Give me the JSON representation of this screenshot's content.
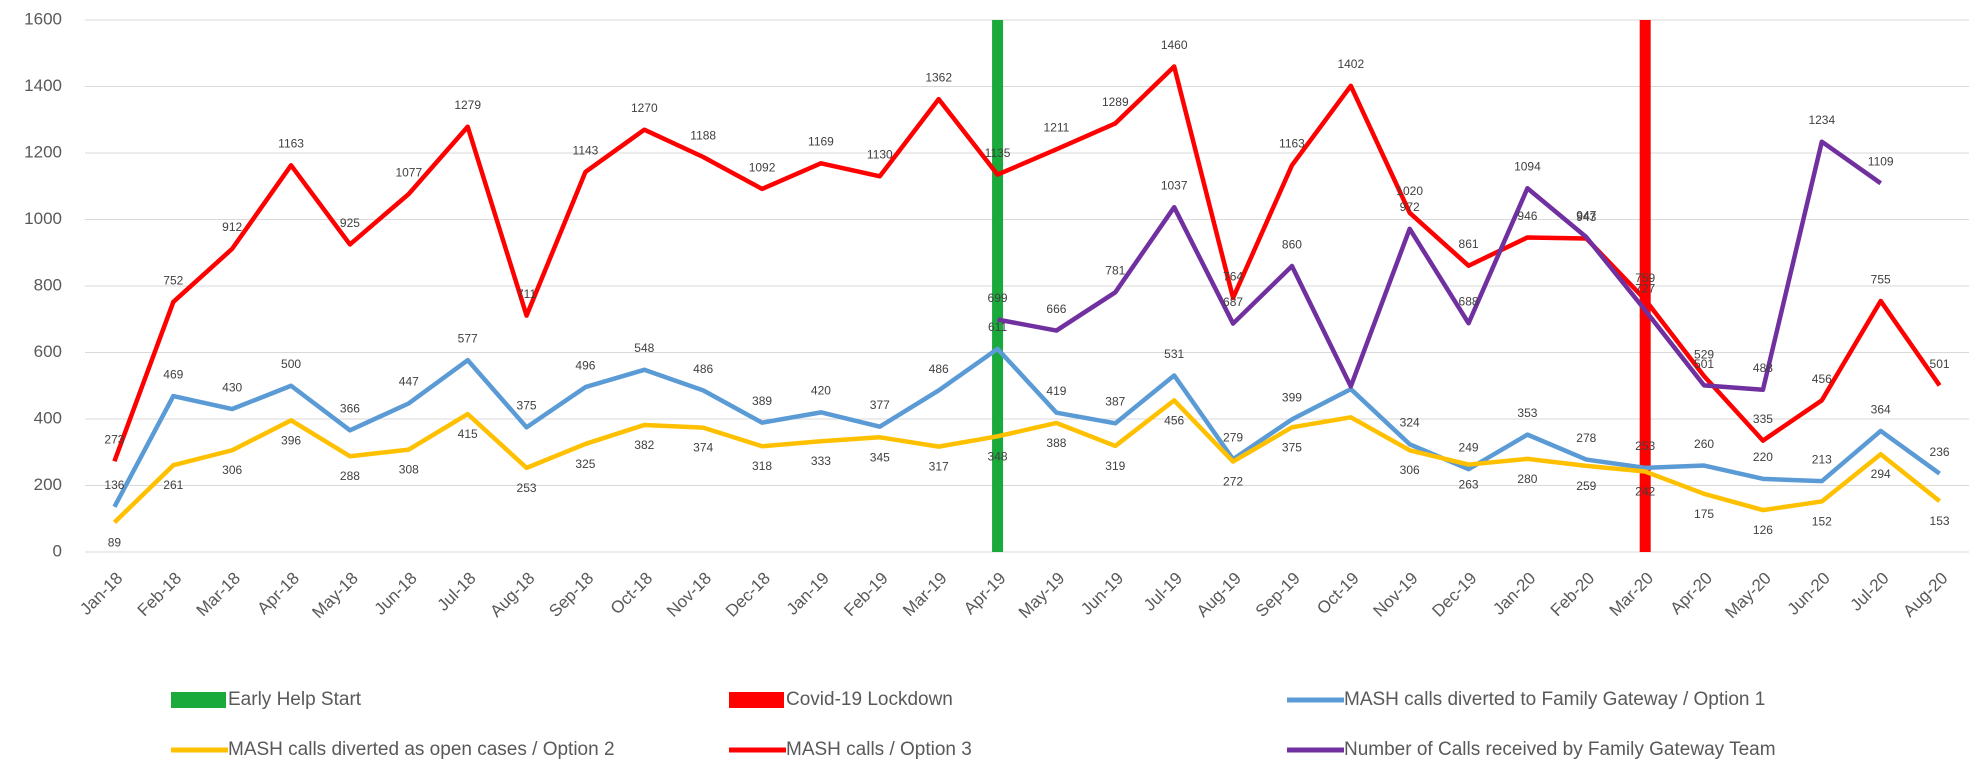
{
  "chart_data": {
    "type": "line",
    "categories": [
      "Jan-18",
      "Feb-18",
      "Mar-18",
      "Apr-18",
      "May-18",
      "Jun-18",
      "Jul-18",
      "Aug-18",
      "Sep-18",
      "Oct-18",
      "Nov-18",
      "Dec-18",
      "Jan-19",
      "Feb-19",
      "Mar-19",
      "Apr-19",
      "May-19",
      "Jun-19",
      "Jul-19",
      "Aug-19",
      "Sep-19",
      "Oct-19",
      "Nov-19",
      "Dec-19",
      "Jan-20",
      "Feb-20",
      "Mar-20",
      "Apr-20",
      "May-20",
      "Jun-20",
      "Jul-20",
      "Aug-20"
    ],
    "markers": [
      {
        "name": "Early Help Start",
        "color": "#1aaa3c",
        "at": "Apr-19"
      },
      {
        "name": "Covid-19 Lockdown",
        "color": "#ff0000",
        "at": "Mar-20"
      }
    ],
    "series": [
      {
        "name": "MASH calls diverted to Family Gateway / Option 1",
        "color": "#5b9bd5",
        "values": [
          136,
          469,
          430,
          500,
          366,
          447,
          577,
          375,
          496,
          548,
          486,
          389,
          420,
          377,
          486,
          611,
          419,
          387,
          531,
          279,
          399,
          490,
          324,
          249,
          353,
          278,
          253,
          260,
          220,
          213,
          364,
          236
        ],
        "value_labels": [
          "136",
          "469",
          "430",
          "500",
          "366",
          "447",
          "577",
          "375",
          "496",
          "548",
          "486",
          "389",
          "420",
          "377",
          "486",
          "611",
          "419",
          "387",
          "531",
          "279",
          "399",
          null,
          "324",
          "249",
          "353",
          "278",
          "253",
          "260",
          "220",
          "213",
          "364",
          "236"
        ]
      },
      {
        "name": "MASH calls diverted as open cases / Option 2",
        "color": "#ffc000",
        "values": [
          89,
          261,
          306,
          396,
          288,
          308,
          415,
          253,
          325,
          382,
          374,
          318,
          333,
          345,
          317,
          348,
          388,
          319,
          456,
          272,
          375,
          405,
          306,
          263,
          280,
          259,
          242,
          175,
          126,
          152,
          294,
          153
        ],
        "value_labels": [
          "89",
          "261",
          "306",
          "396",
          "288",
          "308",
          "415",
          "253",
          "325",
          "382",
          "374",
          "318",
          "333",
          "345",
          "317",
          "348",
          "388",
          "319",
          "456",
          "272",
          "375",
          null,
          "306",
          "263",
          "280",
          "259",
          "242",
          "175",
          "126",
          "152",
          "294",
          "153"
        ]
      },
      {
        "name": "MASH calls / Option 3",
        "color": "#ff0000",
        "values": [
          273,
          752,
          912,
          1163,
          925,
          1077,
          1279,
          711,
          1143,
          1270,
          1188,
          1092,
          1169,
          1130,
          1362,
          1135,
          1211,
          1289,
          1460,
          764,
          1163,
          1402,
          1020,
          861,
          946,
          943,
          759,
          529,
          335,
          456,
          755,
          501
        ],
        "value_labels": [
          "273",
          "752",
          "912",
          "1163",
          "925",
          "1077",
          "1279",
          "711",
          "1143",
          "1270",
          "1188",
          "1092",
          "1169",
          "1130",
          "1362",
          "1135",
          "1211",
          "1289",
          "1460",
          "764",
          "1163",
          "1402",
          "1020",
          "861",
          "946",
          "943",
          "759",
          "529",
          "335",
          "456",
          "755",
          "501"
        ]
      },
      {
        "name": "Number of Calls received by Family Gateway Team",
        "color": "#7030a0",
        "values": [
          null,
          null,
          null,
          null,
          null,
          null,
          null,
          null,
          null,
          null,
          null,
          null,
          null,
          null,
          null,
          699,
          666,
          781,
          1037,
          687,
          860,
          498,
          972,
          688,
          1094,
          947,
          727,
          501,
          488,
          1234,
          1109,
          null
        ],
        "value_labels": [
          null,
          null,
          null,
          null,
          null,
          null,
          null,
          null,
          null,
          null,
          null,
          null,
          null,
          null,
          null,
          "699",
          "666",
          "781",
          "1037",
          "687",
          "860",
          null,
          "972",
          "688",
          "1094",
          "947",
          "727",
          "501",
          "488",
          "1234",
          "1109",
          null
        ]
      }
    ],
    "ylim": [
      0,
      1600
    ],
    "yticks": [
      0,
      200,
      400,
      600,
      800,
      1000,
      1200,
      1400,
      1600
    ],
    "grid": true
  }
}
